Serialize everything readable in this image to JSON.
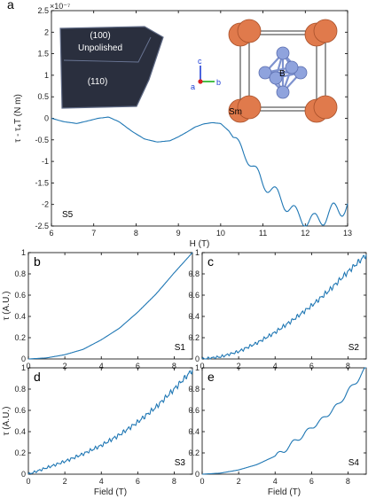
{
  "chart_data": [
    {
      "panel": "a",
      "type": "line",
      "xlabel": "H (T)",
      "ylabel": "τ - τ₄T (N m)",
      "exponent_label": "×10⁻⁷",
      "xlim": [
        6,
        13
      ],
      "ylim": [
        -2.5,
        2.5
      ],
      "xticks": [
        6,
        7,
        8,
        9,
        10,
        11,
        12,
        13
      ],
      "yticks": [
        -2.5,
        -2,
        -1.5,
        -1,
        -0.5,
        0,
        0.5,
        1,
        1.5,
        2,
        2.5
      ],
      "sample_label": "S5",
      "inset_photo": {
        "labels": [
          "(100)",
          "Unpolished",
          "(110)"
        ]
      },
      "inset_structure": {
        "atom_labels": [
          "B",
          "Sm"
        ],
        "axis_labels": [
          "c",
          "a",
          "b"
        ]
      },
      "series": [
        {
          "color": "#1f77b4",
          "points": [
            [
              6.0,
              0.0
            ],
            [
              6.3,
              -0.08
            ],
            [
              6.6,
              -0.12
            ],
            [
              6.9,
              -0.05
            ],
            [
              7.1,
              0.0
            ],
            [
              7.35,
              0.03
            ],
            [
              7.6,
              -0.08
            ],
            [
              7.9,
              -0.3
            ],
            [
              8.2,
              -0.48
            ],
            [
              8.5,
              -0.55
            ],
            [
              8.8,
              -0.52
            ],
            [
              9.0,
              -0.43
            ],
            [
              9.2,
              -0.32
            ],
            [
              9.4,
              -0.2
            ],
            [
              9.6,
              -0.13
            ],
            [
              9.8,
              -0.1
            ],
            [
              10.0,
              -0.12
            ],
            [
              10.2,
              -0.3
            ],
            [
              10.4,
              -0.6
            ],
            [
              10.6,
              -0.85
            ],
            [
              10.8,
              -1.2
            ],
            [
              11.0,
              -1.5
            ],
            [
              11.2,
              -1.65
            ],
            [
              11.4,
              -1.85
            ],
            [
              11.6,
              -2.05
            ],
            [
              11.8,
              -2.25
            ],
            [
              12.0,
              -2.35
            ],
            [
              12.2,
              -2.4
            ],
            [
              12.4,
              -2.3
            ],
            [
              12.6,
              -2.2
            ],
            [
              12.8,
              -2.1
            ],
            [
              13.0,
              -2.0
            ]
          ]
        }
      ]
    },
    {
      "panel": "b",
      "type": "line",
      "xlabel": "",
      "ylabel": "τ (A.U.)",
      "xlim": [
        0,
        9
      ],
      "ylim": [
        0,
        1
      ],
      "xticks": [
        0,
        2,
        4,
        6,
        8
      ],
      "yticks": [
        0,
        0.2,
        0.4,
        0.6,
        0.8,
        1
      ],
      "sample_label": "S1",
      "series": [
        {
          "color": "#1f77b4",
          "points": [
            [
              0,
              0.0
            ],
            [
              1,
              0.01
            ],
            [
              2,
              0.04
            ],
            [
              3,
              0.09
            ],
            [
              4,
              0.18
            ],
            [
              5,
              0.29
            ],
            [
              6,
              0.44
            ],
            [
              7,
              0.61
            ],
            [
              8,
              0.81
            ],
            [
              9,
              1.0
            ]
          ]
        }
      ]
    },
    {
      "panel": "c",
      "type": "line",
      "xlabel": "",
      "ylabel": "",
      "xlim": [
        0,
        9
      ],
      "ylim": [
        0,
        1
      ],
      "xticks": [
        0,
        2,
        4,
        6,
        8
      ],
      "yticks": [
        0,
        0.2,
        0.4,
        0.6,
        0.8,
        1
      ],
      "sample_label": "S2",
      "series": [
        {
          "color": "#1f77b4",
          "points": [
            [
              0,
              0.0
            ],
            [
              1,
              0.02
            ],
            [
              2,
              0.07
            ],
            [
              3,
              0.15
            ],
            [
              4,
              0.25
            ],
            [
              5,
              0.37
            ],
            [
              6,
              0.5
            ],
            [
              7,
              0.65
            ],
            [
              8,
              0.82
            ],
            [
              9,
              0.98
            ]
          ]
        }
      ]
    },
    {
      "panel": "d",
      "type": "line",
      "xlabel": "Field (T)",
      "ylabel": "τ (A.U.)",
      "xlim": [
        0,
        9
      ],
      "ylim": [
        0,
        1
      ],
      "xticks": [
        0,
        2,
        4,
        6,
        8
      ],
      "yticks": [
        0,
        0.2,
        0.4,
        0.6,
        0.8,
        1
      ],
      "sample_label": "S3",
      "series": [
        {
          "color": "#1f77b4",
          "points": [
            [
              0,
              0.0
            ],
            [
              1,
              0.06
            ],
            [
              2,
              0.12
            ],
            [
              3,
              0.19
            ],
            [
              4,
              0.27
            ],
            [
              5,
              0.37
            ],
            [
              6,
              0.49
            ],
            [
              7,
              0.63
            ],
            [
              8,
              0.8
            ],
            [
              9,
              0.98
            ]
          ]
        }
      ]
    },
    {
      "panel": "e",
      "type": "line",
      "xlabel": "Field (T)",
      "ylabel": "",
      "xlim": [
        0,
        9
      ],
      "ylim": [
        0,
        1
      ],
      "xticks": [
        0,
        2,
        4,
        6,
        8
      ],
      "yticks": [
        0,
        0.2,
        0.4,
        0.6,
        0.8,
        1
      ],
      "sample_label": "S4",
      "series": [
        {
          "color": "#1f77b4",
          "points": [
            [
              0,
              0.0
            ],
            [
              1,
              0.01
            ],
            [
              2,
              0.04
            ],
            [
              3,
              0.09
            ],
            [
              4,
              0.17
            ],
            [
              4.5,
              0.22
            ],
            [
              5,
              0.3
            ],
            [
              5.5,
              0.36
            ],
            [
              6,
              0.44
            ],
            [
              6.5,
              0.5
            ],
            [
              7,
              0.58
            ],
            [
              7.5,
              0.66
            ],
            [
              8,
              0.78
            ],
            [
              8.5,
              0.88
            ],
            [
              9,
              1.0
            ]
          ]
        }
      ]
    }
  ]
}
